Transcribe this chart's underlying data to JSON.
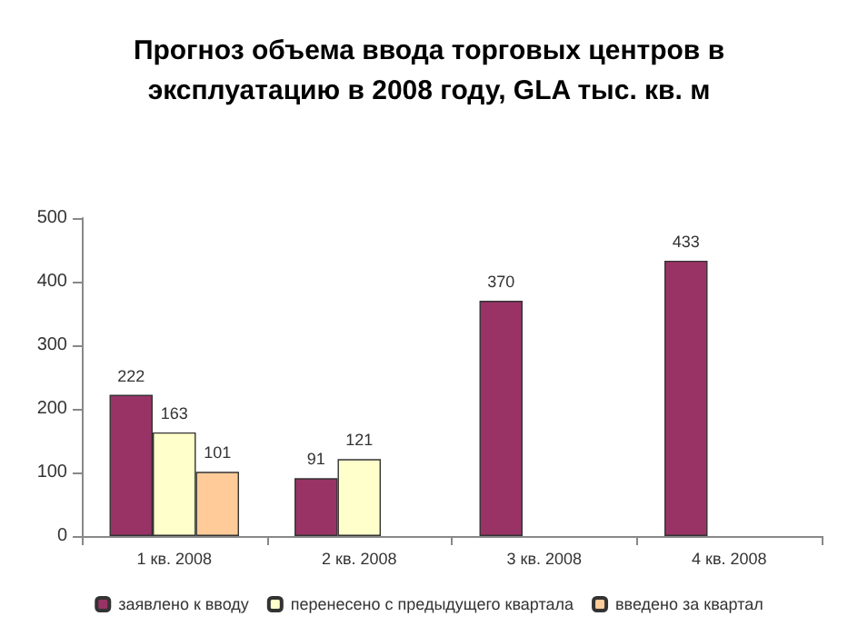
{
  "chart_data": {
    "type": "bar",
    "title": "Прогноз объема ввода торговых центров в\nэксплуатацию в 2008 году, GLA тыс. кв. м",
    "categories": [
      "1 кв. 2008",
      "2 кв. 2008",
      "3 кв. 2008",
      "4 кв. 2008"
    ],
    "series": [
      {
        "name": "заявлено к вводу",
        "color": "#993366",
        "values": [
          222,
          91,
          370,
          433
        ]
      },
      {
        "name": "перенесено с предыдущего квартала",
        "color": "#ffffcc",
        "values": [
          163,
          121,
          null,
          null
        ]
      },
      {
        "name": "введено за квартал",
        "color": "#ffcc99",
        "values": [
          101,
          null,
          null,
          null
        ]
      }
    ],
    "ylim": [
      0,
      500
    ],
    "yticks": [
      0,
      100,
      200,
      300,
      400,
      500
    ],
    "grid": false,
    "legend": "bottom",
    "data_labels": true
  }
}
